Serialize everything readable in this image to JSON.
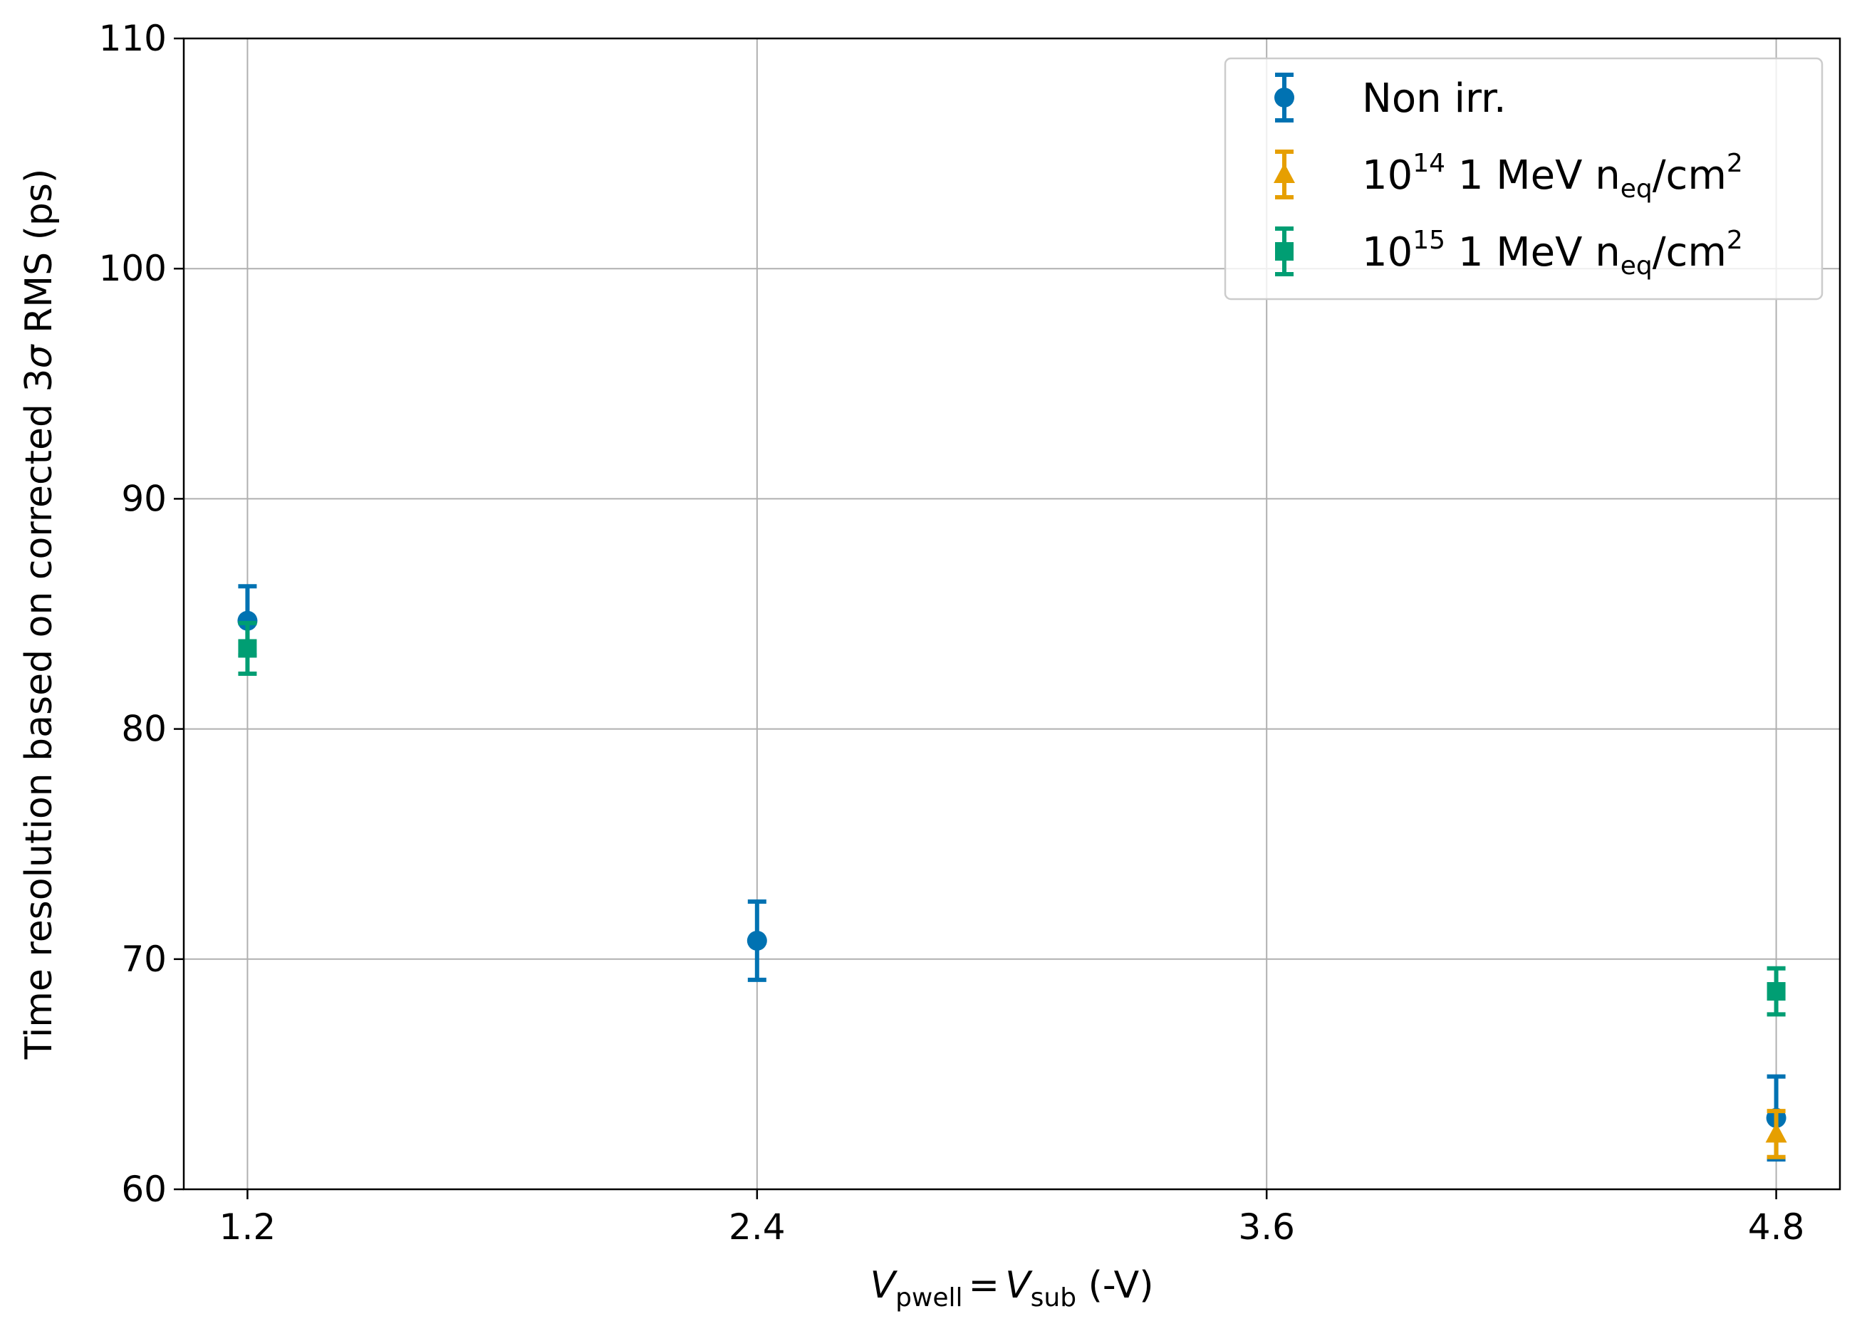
{
  "chart_data": {
    "type": "scatter",
    "title": "",
    "xlabel": {
      "v1": "V",
      "v1_sub": "pwell",
      "eq": "=",
      "v2": "V",
      "v2_sub": "sub",
      "unit": " (-V)"
    },
    "ylabel": {
      "prefix": "Time resolution based on corrected 3",
      "sigma": "σ",
      "suffix": " RMS (ps)"
    },
    "xlim": [
      1.05,
      4.95
    ],
    "ylim": [
      60,
      110
    ],
    "xticks": [
      1.2,
      2.4,
      3.6,
      4.8
    ],
    "xtick_labels": [
      "1.2",
      "2.4",
      "3.6",
      "4.8"
    ],
    "yticks": [
      60,
      70,
      80,
      90,
      100,
      110
    ],
    "ytick_labels": [
      "60",
      "70",
      "80",
      "90",
      "100",
      "110"
    ],
    "grid": true,
    "legend_position": "top-right",
    "series": [
      {
        "name": "Non irr.",
        "legend": {
          "base": "Non irr."
        },
        "color": "#0072B2",
        "marker": "circle",
        "points": [
          {
            "x": 1.2,
            "y": 84.7,
            "err": 1.5
          },
          {
            "x": 2.4,
            "y": 70.8,
            "err": 1.7
          },
          {
            "x": 4.8,
            "y": 63.1,
            "err": 1.8
          }
        ]
      },
      {
        "name": "10^14 1 MeV n_eq/cm^2",
        "legend": {
          "base": "10",
          "exp": "14",
          "mid": " 1 MeV n",
          "sub": "eq",
          "tail": "/cm",
          "exp2": "2"
        },
        "color": "#E69F00",
        "marker": "triangle",
        "points": [
          {
            "x": 4.8,
            "y": 62.4,
            "err": 1.0
          }
        ]
      },
      {
        "name": "10^15 1 MeV n_eq/cm^2",
        "legend": {
          "base": "10",
          "exp": "15",
          "mid": " 1 MeV n",
          "sub": "eq",
          "tail": "/cm",
          "exp2": "2"
        },
        "color": "#009E73",
        "marker": "square",
        "points": [
          {
            "x": 1.2,
            "y": 83.5,
            "err": 1.1
          },
          {
            "x": 4.8,
            "y": 68.6,
            "err": 1.0
          }
        ]
      }
    ]
  }
}
